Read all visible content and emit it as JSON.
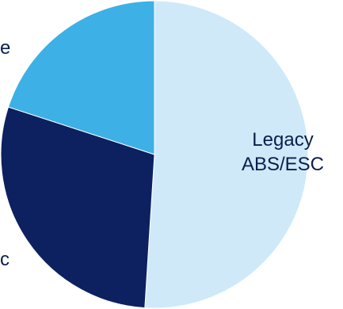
{
  "chart_data": {
    "type": "pie",
    "title": "",
    "slices": [
      {
        "label_lines": [
          "Legacy",
          "ABS/ESC"
        ],
        "value": 51,
        "color": "#cfe9f9"
      },
      {
        "label_lines": [
          "c"
        ],
        "value": 29,
        "color": "#0d2160"
      },
      {
        "label_lines": [
          "e"
        ],
        "value": 20,
        "color": "#3db1e6"
      }
    ],
    "start": "top, clockwise",
    "legend": "none"
  }
}
